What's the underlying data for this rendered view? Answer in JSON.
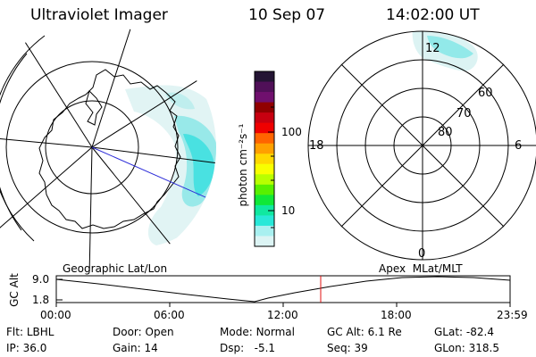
{
  "header": {
    "instrument": "Ultraviolet Imager",
    "date": "10 Sep 07",
    "time": "14:02:00 UT"
  },
  "colorbar": {
    "unit_label": "photon cm⁻²s⁻¹",
    "ticks": [
      "100",
      "10"
    ],
    "colors": [
      "#241434",
      "#501058",
      "#70106e",
      "#900000",
      "#c80010",
      "#ef0000",
      "#ff6400",
      "#ffa000",
      "#ffd800",
      "#f8ff00",
      "#b8ff00",
      "#58f000",
      "#10e838",
      "#10e8a0",
      "#28e8d8",
      "#a8f0f0",
      "#dcf4f4"
    ]
  },
  "left_map": {
    "caption": "Geographic Lat/Lon"
  },
  "right_map": {
    "caption": "Apex  MLat/MLT",
    "mlt_labels": {
      "top": "12",
      "left": "18",
      "right": "6",
      "bottom": "0"
    },
    "lat_labels": [
      "60",
      "70",
      "80"
    ]
  },
  "altitude_plot": {
    "ylabel": "GC Alt",
    "yticks": [
      "9.0",
      "1.8"
    ],
    "xticks": [
      "00:00",
      "06:00",
      "12:00",
      "18:00",
      "23:59"
    ],
    "current_time_marker": "14:02"
  },
  "info": {
    "flt": {
      "label": "Flt:",
      "value": "LBHL"
    },
    "ip": {
      "label": "IP:",
      "value": "36.0"
    },
    "door": {
      "label": "Door:",
      "value": "Open"
    },
    "gain": {
      "label": "Gain:",
      "value": "14"
    },
    "mode": {
      "label": "Mode:",
      "value": "Normal"
    },
    "dsp": {
      "label": "Dsp:",
      "value": "-5.1"
    },
    "gcalt": {
      "label": "GC Alt:",
      "value": "6.1 Re"
    },
    "seq": {
      "label": "Seq:",
      "value": "39"
    },
    "glat": {
      "label": "GLat:",
      "value": "-82.4"
    },
    "glon": {
      "label": "GLon:",
      "value": "318.5"
    }
  }
}
